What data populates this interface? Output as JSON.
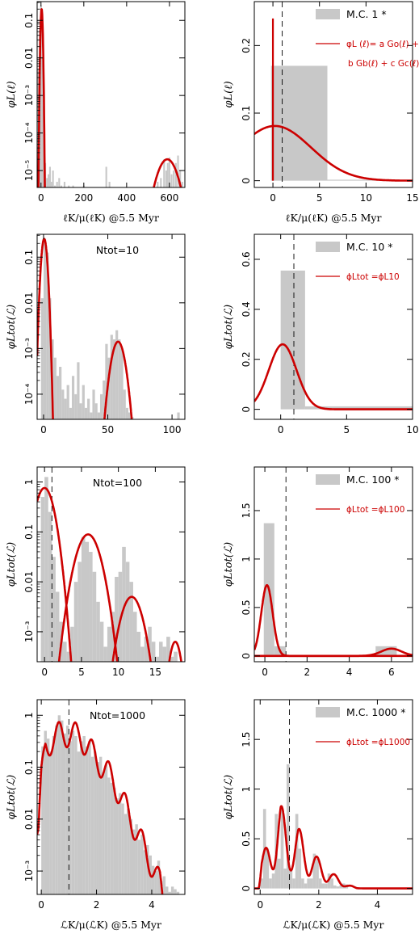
{
  "colors": {
    "histogram": "#c8c8c8",
    "fit": "#cc0000",
    "axis": "#000000",
    "vline": "#000000"
  },
  "chart_data": [
    {
      "id": "p1",
      "type": "bar",
      "yscale": "log",
      "xlim": [
        -18,
        672
      ],
      "ylim_log10": [
        -5.45,
        -0.5
      ],
      "xticks": [
        0,
        200,
        400,
        600
      ],
      "xtick_labels": [
        "0",
        "200",
        "400",
        "600"
      ],
      "yticks_log10": [
        -5,
        -4,
        -3,
        -2,
        -1
      ],
      "ytick_labels": [
        "10⁻⁵",
        "10⁻⁴",
        "10⁻³",
        "0.01",
        "0.1"
      ],
      "xlabel": "ℓK/μ(ℓK) @5.5 Myr",
      "ylabel": "φL(ℓ)",
      "annotation": "",
      "hist_x": [
        -12,
        -6,
        0,
        5,
        10,
        15,
        20,
        28,
        35,
        42,
        48,
        56,
        65,
        75,
        85,
        95,
        110,
        130,
        150,
        200,
        305,
        320,
        545,
        560,
        575,
        585,
        592,
        600,
        610,
        620,
        630,
        640,
        650,
        660
      ],
      "hist_log10": [
        -2.3,
        -1.2,
        -0.6,
        -2.0,
        -3.3,
        -4.5,
        -4.8,
        -5.2,
        -5.1,
        -4.9,
        -5.3,
        -5.0,
        -5.4,
        -5.3,
        -5.2,
        -5.4,
        -5.3,
        -5.4,
        -5.4,
        -5.4,
        -4.9,
        -5.3,
        -5.3,
        -5.2,
        -4.7,
        -5.0,
        -4.8,
        -4.65,
        -5.1,
        -5.0,
        -4.8,
        -4.6,
        -5.0,
        -5.3
      ],
      "hist_width": 8,
      "fit": [
        {
          "kind": "gauss",
          "mu": 3,
          "sigma": 3.2,
          "amp_log10": -0.7
        },
        {
          "kind": "gauss",
          "mu": 590,
          "sigma": 34,
          "amp_log10": -4.7
        }
      ],
      "vline": null
    },
    {
      "id": "p2",
      "type": "bar",
      "yscale": "linear",
      "xlim": [
        -2,
        15
      ],
      "ylim": [
        -0.01,
        0.265
      ],
      "xticks": [
        0,
        5,
        10,
        15
      ],
      "xtick_labels": [
        "0",
        "5",
        "10",
        "15"
      ],
      "yticks": [
        0,
        0.1,
        0.2
      ],
      "ytick_labels": [
        "0",
        "0.1",
        "0.2"
      ],
      "xlabel": "ℓK/μ(ℓK) @5.5 Myr",
      "ylabel": "φL(ℓ)",
      "legend": {
        "hist": "M.C. 1 *",
        "fit_line1": "φL (ℓ)= a Go(ℓ) +",
        "fit_line2": "b Gb(ℓ) + c Gc(ℓ)",
        "placement": "top-right"
      },
      "hist_bars": [
        {
          "x0": -0.1,
          "x1": 0.1,
          "y": 0.0
        },
        {
          "x0": -0.2,
          "x1": 5.85,
          "y": 0.17
        },
        {
          "x0": 5.85,
          "x1": 15,
          "y": 0.0
        }
      ],
      "spike": {
        "x": 0.0,
        "y": 0.24
      },
      "fit": [
        {
          "kind": "gauss",
          "mu": 0.2,
          "sigma": 3.9,
          "amp": 0.081
        }
      ],
      "vline": 1
    },
    {
      "id": "p3",
      "type": "bar",
      "yscale": "log",
      "xlim": [
        -5,
        110
      ],
      "ylim_log10": [
        -4.55,
        -0.5
      ],
      "xticks": [
        0,
        50,
        100
      ],
      "xtick_labels": [
        "0",
        "50",
        "100"
      ],
      "yticks_log10": [
        -4,
        -3,
        -2,
        -1
      ],
      "ytick_labels": [
        "10⁻⁴",
        "10⁻³",
        "0.01",
        "0.1"
      ],
      "xlabel": "",
      "ylabel": "φLtot(ℒ)",
      "annotation": "Ntot=10",
      "hist_x": [
        -1,
        1,
        3,
        5,
        7,
        9,
        11,
        13,
        15,
        17,
        19,
        21,
        23,
        25,
        27,
        29,
        31,
        33,
        35,
        37,
        39,
        41,
        43,
        45,
        47,
        49,
        51,
        53,
        55,
        57,
        59,
        61,
        63,
        65,
        67,
        69,
        105
      ],
      "hist_log10": [
        -1.9,
        -0.6,
        -0.9,
        -1.9,
        -2.8,
        -3.2,
        -3.6,
        -3.4,
        -3.9,
        -4.1,
        -3.8,
        -4.3,
        -3.6,
        -4.0,
        -3.3,
        -4.2,
        -3.8,
        -4.3,
        -4.1,
        -4.4,
        -3.9,
        -4.2,
        -4.4,
        -4.0,
        -3.7,
        -2.9,
        -3.2,
        -2.7,
        -2.8,
        -2.6,
        -2.8,
        -3.0,
        -3.9,
        -4.3,
        -4.4,
        -4.5,
        -4.4
      ],
      "hist_width": 2,
      "fit": [
        {
          "kind": "gauss",
          "mu": 0.5,
          "sigma": 1.6,
          "amp_log10": -0.6
        },
        {
          "kind": "gauss",
          "mu": 58,
          "sigma": 3.8,
          "amp_log10": -2.85
        }
      ],
      "vline": null
    },
    {
      "id": "p4",
      "type": "bar",
      "yscale": "linear",
      "xlim": [
        -2,
        10
      ],
      "ylim": [
        -0.04,
        0.7
      ],
      "xticks": [
        0,
        5,
        10
      ],
      "xtick_labels": [
        "0",
        "5",
        "10"
      ],
      "yticks": [
        0,
        0.2,
        0.4,
        0.6
      ],
      "ytick_labels": [
        "0",
        "0.2",
        "0.4",
        "0.6"
      ],
      "xlabel": "",
      "ylabel": "φLtot(ℒ)",
      "legend": {
        "hist": "M.C. 10 *",
        "fit_line1": "ϕLtot =ϕL10",
        "fit_line2": "",
        "placement": "top-right"
      },
      "hist_bars": [
        {
          "x0": 0.0,
          "x1": 1.85,
          "y": 0.555
        },
        {
          "x0": 1.85,
          "x1": 10,
          "y": 0.012
        }
      ],
      "spike": null,
      "fit": [
        {
          "kind": "gauss",
          "mu": 0.15,
          "sigma": 1.05,
          "amp": 0.26
        }
      ],
      "vline": 1
    },
    {
      "id": "p5",
      "type": "bar",
      "yscale": "log",
      "xlim": [
        -1,
        19
      ],
      "ylim_log10": [
        -3.6,
        0.3
      ],
      "xticks": [
        0,
        5,
        10,
        15
      ],
      "xtick_labels": [
        "0",
        "5",
        "10",
        "15"
      ],
      "yticks_log10": [
        -3,
        -2,
        -1,
        0
      ],
      "ytick_labels": [
        "10⁻³",
        "0.01",
        "0.1",
        "1"
      ],
      "xlabel": "",
      "ylabel": "φLtot(ℒ)",
      "annotation": "Ntot=100",
      "hist_x": [
        -0.25,
        0.25,
        0.75,
        1.25,
        1.75,
        2.25,
        2.75,
        3.25,
        3.75,
        4.25,
        4.75,
        5.25,
        5.75,
        6.25,
        6.75,
        7.25,
        7.75,
        8.25,
        8.75,
        9.25,
        9.75,
        10.25,
        10.75,
        11.25,
        11.75,
        12.25,
        12.75,
        13.25,
        13.75,
        14.25,
        14.75,
        15.25,
        15.75,
        16.25,
        16.75,
        17.25,
        17.75
      ],
      "hist_log10": [
        -0.3,
        0.1,
        -0.6,
        -1.5,
        -2.2,
        -2.8,
        -3.2,
        -3.4,
        -2.9,
        -2.0,
        -1.6,
        -1.1,
        -1.2,
        -1.4,
        -1.8,
        -2.4,
        -2.8,
        -3.3,
        -2.9,
        -2.6,
        -1.9,
        -1.8,
        -1.3,
        -1.6,
        -2.0,
        -2.6,
        -3.0,
        -3.3,
        -3.1,
        -2.9,
        -3.2,
        -3.5,
        -3.2,
        -3.3,
        -3.1,
        -3.5,
        -3.4
      ],
      "hist_width": 0.5,
      "fit": [
        {
          "kind": "gauss",
          "mu": 0.0,
          "sigma": 0.9,
          "amp_log10": -0.12
        },
        {
          "kind": "gauss",
          "mu": 5.9,
          "sigma": 1.15,
          "amp_log10": -1.05
        },
        {
          "kind": "gauss",
          "mu": 11.8,
          "sigma": 1.05,
          "amp_log10": -2.3
        },
        {
          "kind": "gauss",
          "mu": 17.7,
          "sigma": 0.6,
          "amp_log10": -3.2
        }
      ],
      "vline": 1
    },
    {
      "id": "p6",
      "type": "bar",
      "yscale": "linear",
      "xlim": [
        -0.5,
        7
      ],
      "ylim": [
        -0.06,
        1.95
      ],
      "xticks": [
        0,
        2,
        4,
        6
      ],
      "xtick_labels": [
        "0",
        "2",
        "4",
        "6"
      ],
      "yticks": [
        0,
        0.5,
        1,
        1.5
      ],
      "ytick_labels": [
        "0",
        "0.5",
        "1",
        "1.5"
      ],
      "xlabel": "",
      "ylabel": "φLtot(ℒ)",
      "legend": {
        "hist": "M.C. 100 *",
        "fit_line1": "ϕLtot =ϕL100",
        "fit_line2": "",
        "placement": "top-right"
      },
      "hist_bars": [
        {
          "x0": -0.05,
          "x1": 0.45,
          "y": 1.37
        },
        {
          "x0": 0.45,
          "x1": 1.0,
          "y": 0.1
        },
        {
          "x0": 1.0,
          "x1": 1.5,
          "y": 0.0
        },
        {
          "x0": 5.25,
          "x1": 6.25,
          "y": 0.1
        }
      ],
      "spike": null,
      "fit": [
        {
          "kind": "gauss",
          "mu": 0.1,
          "sigma": 0.27,
          "amp": 0.73
        },
        {
          "kind": "gauss",
          "mu": 6.0,
          "sigma": 0.48,
          "amp": 0.075
        }
      ],
      "vline": 1
    },
    {
      "id": "p7",
      "type": "bar",
      "yscale": "log",
      "xlim": [
        -0.15,
        5.2
      ],
      "ylim_log10": [
        -3.45,
        0.3
      ],
      "xticks": [
        0,
        2,
        4
      ],
      "xtick_labels": [
        "0",
        "2",
        "4"
      ],
      "yticks_log10": [
        -3,
        -2,
        -1,
        0
      ],
      "ytick_labels": [
        "10⁻³",
        "0.01",
        "0.1",
        "1"
      ],
      "xlabel": "ℒK/μ(ℒK) @5.5 Myr",
      "ylabel": "φLtot(ℒ)",
      "annotation": "Ntot=1000",
      "hist_x": [
        0.05,
        0.15,
        0.25,
        0.35,
        0.45,
        0.55,
        0.65,
        0.75,
        0.85,
        0.95,
        1.05,
        1.15,
        1.25,
        1.35,
        1.45,
        1.55,
        1.65,
        1.75,
        1.85,
        1.95,
        2.05,
        2.15,
        2.25,
        2.35,
        2.45,
        2.55,
        2.65,
        2.75,
        2.85,
        2.95,
        3.05,
        3.15,
        3.25,
        3.35,
        3.45,
        3.55,
        3.65,
        3.75,
        3.85,
        3.95,
        4.05,
        4.15,
        4.25,
        4.35,
        4.45,
        4.55,
        4.65,
        4.75,
        4.85,
        4.95
      ],
      "hist_log10": [
        -0.6,
        -0.3,
        -0.45,
        -0.7,
        -0.4,
        -0.2,
        0.0,
        -0.1,
        -0.35,
        -0.2,
        -0.5,
        -0.3,
        -0.4,
        -0.7,
        -0.5,
        -0.4,
        -0.6,
        -0.5,
        -0.8,
        -0.7,
        -0.9,
        -0.8,
        -1.1,
        -0.95,
        -1.2,
        -1.3,
        -1.4,
        -1.6,
        -1.5,
        -1.7,
        -1.9,
        -1.8,
        -2.0,
        -2.2,
        -2.1,
        -2.4,
        -2.3,
        -2.6,
        -2.5,
        -2.7,
        -2.9,
        -3.0,
        -2.8,
        -3.2,
        -3.1,
        -3.3,
        -3.4,
        -3.3,
        -3.35,
        -3.4
      ],
      "hist_width": 0.1,
      "fit": [
        {
          "kind": "wave",
          "env": [
            [
              -0.1,
              -2.0
            ],
            [
              0.0,
              -1.0
            ],
            [
              0.15,
              -0.35
            ],
            [
              0.7,
              -0.1
            ],
            [
              1.4,
              -0.15
            ],
            [
              2.0,
              -0.6
            ],
            [
              2.6,
              -1.0
            ],
            [
              3.2,
              -1.7
            ],
            [
              3.8,
              -2.4
            ],
            [
              4.3,
              -3.0
            ],
            [
              4.5,
              -3.6
            ]
          ],
          "period": 0.605,
          "phase": 0.02,
          "depth": 0.5
        }
      ],
      "vline": 1
    },
    {
      "id": "p8",
      "type": "bar",
      "yscale": "linear",
      "xlim": [
        -0.2,
        5.2
      ],
      "ylim": [
        -0.06,
        1.9
      ],
      "xticks": [
        0,
        2,
        4
      ],
      "xtick_labels": [
        "0",
        "2",
        "4"
      ],
      "yticks": [
        0,
        0.5,
        1,
        1.5
      ],
      "ytick_labels": [
        "0",
        "0.5",
        "1",
        "1.5"
      ],
      "xlabel": "ℒK/μ(ℒK) @5.5 Myr",
      "ylabel": "φLtot(ℒ)",
      "legend": {
        "hist": "M.C. 1000 *",
        "fit_line1": "ϕLtot =ϕL1000",
        "fit_line2": "",
        "placement": "top-right"
      },
      "hist_bars": [
        {
          "x0": 0.0,
          "x1": 0.1,
          "y": 0.1
        },
        {
          "x0": 0.1,
          "x1": 0.2,
          "y": 0.8
        },
        {
          "x0": 0.2,
          "x1": 0.3,
          "y": 0.4
        },
        {
          "x0": 0.3,
          "x1": 0.4,
          "y": 0.1
        },
        {
          "x0": 0.4,
          "x1": 0.5,
          "y": 0.15
        },
        {
          "x0": 0.5,
          "x1": 0.6,
          "y": 0.75
        },
        {
          "x0": 0.6,
          "x1": 0.7,
          "y": 0.3
        },
        {
          "x0": 0.7,
          "x1": 0.8,
          "y": 0.8
        },
        {
          "x0": 0.8,
          "x1": 0.9,
          "y": 0.2
        },
        {
          "x0": 0.9,
          "x1": 1.0,
          "y": 1.25
        },
        {
          "x0": 1.0,
          "x1": 1.1,
          "y": 0.2
        },
        {
          "x0": 1.1,
          "x1": 1.2,
          "y": 0.1
        },
        {
          "x0": 1.2,
          "x1": 1.3,
          "y": 0.75
        },
        {
          "x0": 1.3,
          "x1": 1.4,
          "y": 0.4
        },
        {
          "x0": 1.4,
          "x1": 1.5,
          "y": 0.1
        },
        {
          "x0": 1.5,
          "x1": 1.6,
          "y": 0.05
        },
        {
          "x0": 1.6,
          "x1": 1.7,
          "y": 0.1
        },
        {
          "x0": 1.7,
          "x1": 1.8,
          "y": 0.1
        },
        {
          "x0": 1.8,
          "x1": 1.9,
          "y": 0.35
        },
        {
          "x0": 1.9,
          "x1": 2.0,
          "y": 0.3
        },
        {
          "x0": 2.0,
          "x1": 2.1,
          "y": 0.1
        },
        {
          "x0": 2.1,
          "x1": 2.2,
          "y": 0.05
        },
        {
          "x0": 2.2,
          "x1": 2.3,
          "y": 0.05
        },
        {
          "x0": 2.3,
          "x1": 2.4,
          "y": 0.15
        },
        {
          "x0": 2.4,
          "x1": 2.5,
          "y": 0.1
        },
        {
          "x0": 2.5,
          "x1": 2.6,
          "y": 0.03
        },
        {
          "x0": 2.6,
          "x1": 2.7,
          "y": 0.02
        },
        {
          "x0": 2.7,
          "x1": 2.8,
          "y": 0.03
        },
        {
          "x0": 2.8,
          "x1": 2.9,
          "y": 0.05
        },
        {
          "x0": 2.9,
          "x1": 3.0,
          "y": 0.04
        }
      ],
      "spike": null,
      "fit": [
        {
          "kind": "lwave",
          "env": [
            [
              -0.05,
              0.0
            ],
            [
              0.05,
              0.3
            ],
            [
              0.7,
              0.86
            ],
            [
              1.0,
              0.6
            ],
            [
              1.3,
              0.62
            ],
            [
              1.7,
              0.4
            ],
            [
              2.0,
              0.3
            ],
            [
              2.5,
              0.15
            ],
            [
              3.0,
              0.04
            ],
            [
              3.3,
              0.005
            ],
            [
              3.6,
              0.0
            ],
            [
              5.2,
              0.0
            ]
          ],
          "period": 0.6,
          "phase": 0.15,
          "depth": 0.7
        }
      ],
      "vline": 1
    }
  ]
}
